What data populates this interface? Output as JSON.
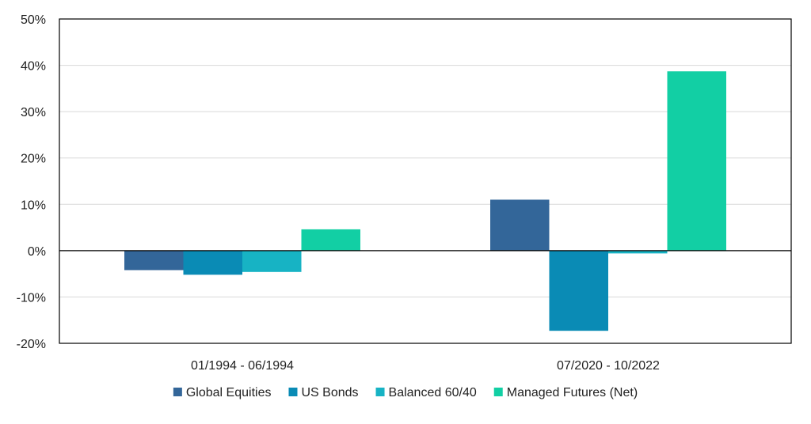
{
  "chart_data": {
    "type": "bar",
    "title": "",
    "xlabel": "",
    "ylabel": "",
    "categories": [
      "01/1994 - 06/1994",
      "07/2020 - 10/2022"
    ],
    "series": [
      {
        "name": "Global Equities",
        "color": "#336699",
        "values": [
          -4.2,
          11.0
        ]
      },
      {
        "name": "US Bonds",
        "color": "#0a8bb5",
        "values": [
          -5.2,
          -17.3
        ]
      },
      {
        "name": "Balanced 60/40",
        "color": "#17b3c4",
        "values": [
          -4.6,
          -0.6
        ]
      },
      {
        "name": "Managed Futures (Net)",
        "color": "#12cfa4",
        "values": [
          4.6,
          38.7
        ]
      }
    ],
    "ylim": [
      -20,
      50
    ],
    "yticks": [
      -20,
      -10,
      0,
      10,
      20,
      30,
      40,
      50
    ],
    "ytick_labels": [
      "-20%",
      "-10%",
      "0%",
      "10%",
      "20%",
      "30%",
      "40%",
      "50%"
    ],
    "grid": true,
    "legend_position": "bottom"
  }
}
